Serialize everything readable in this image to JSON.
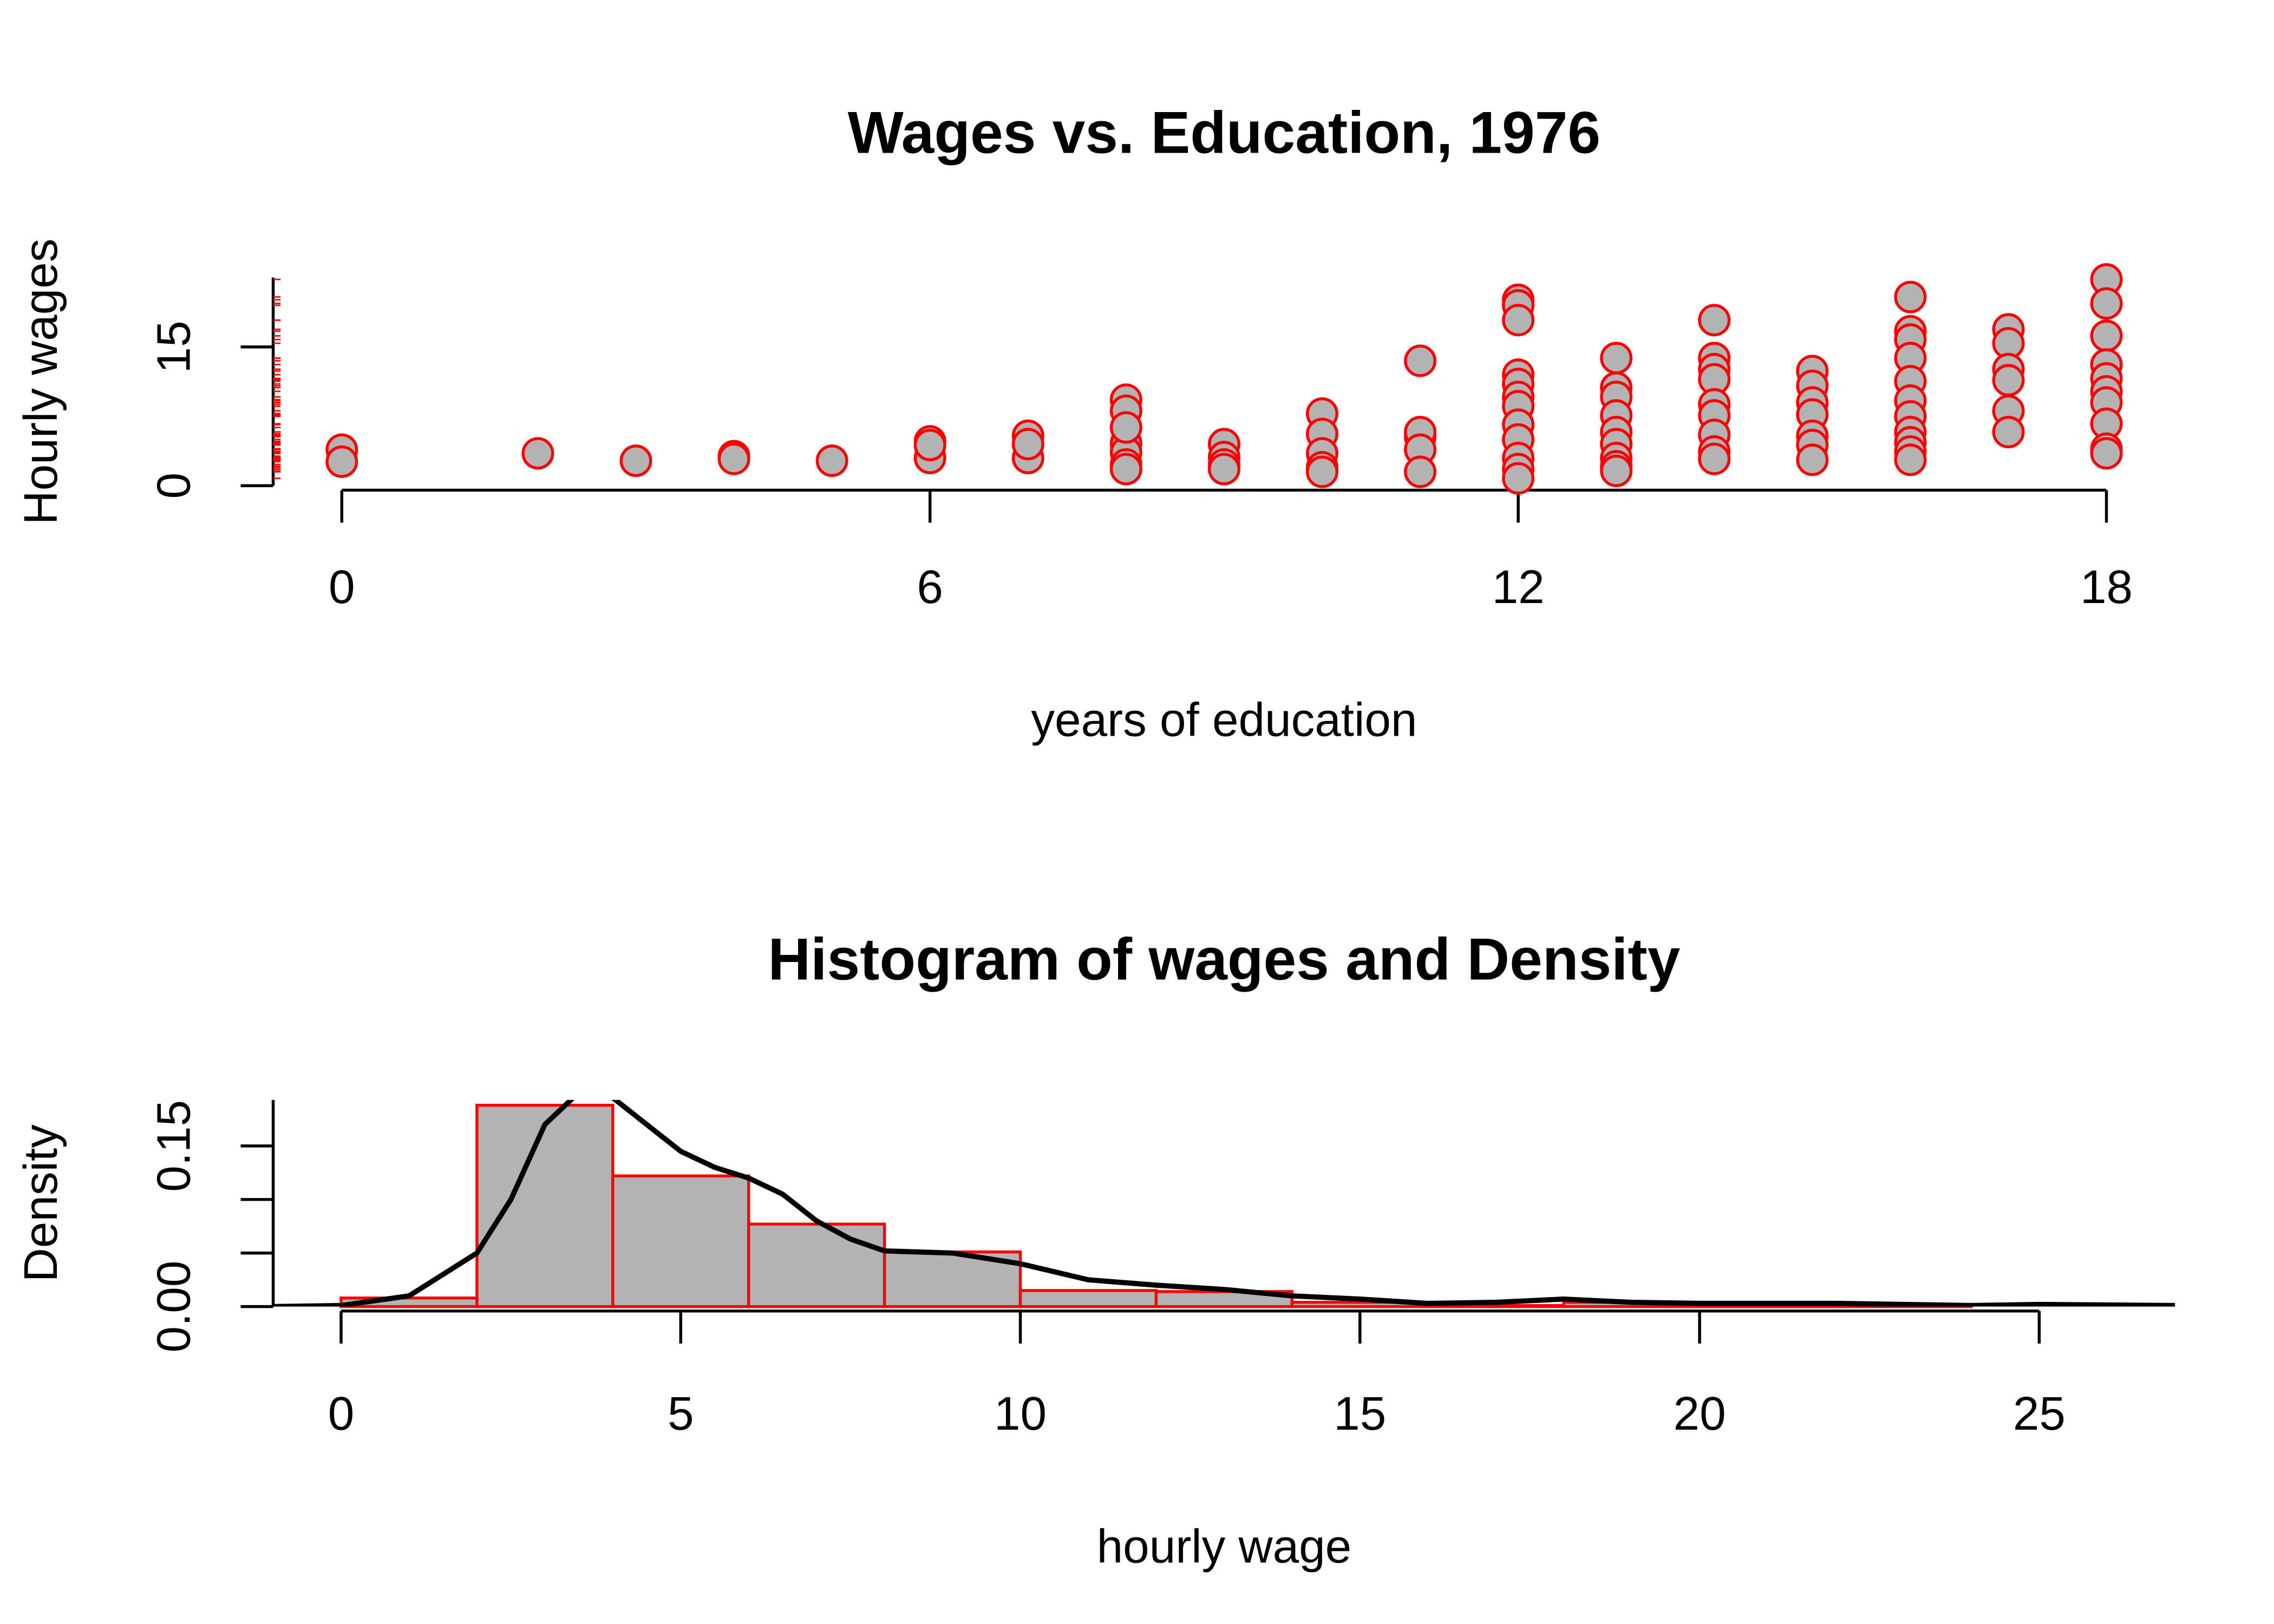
{
  "chart_data": [
    {
      "type": "scatter",
      "title": "Wages vs. Education, 1976",
      "x_label": "years of education",
      "y_label": "Hourly wages",
      "color": "#b3b3b3",
      "edgecolor": "#ff0000",
      "rug": true,
      "xlim": [
        -0.7,
        18.7
      ],
      "ylim": [
        0,
        22.5
      ],
      "xticks": [
        0,
        6,
        12,
        18
      ],
      "yticks": [
        0,
        15
      ],
      "x": [
        0,
        0,
        2,
        3,
        4,
        4,
        5,
        6,
        6,
        6,
        7,
        7,
        7,
        8,
        8,
        8,
        8,
        8,
        8,
        8,
        9,
        9,
        9,
        9,
        10,
        10,
        10,
        10,
        10,
        11,
        11,
        11,
        11,
        11,
        12,
        12,
        12,
        12,
        12,
        12,
        12,
        12,
        12,
        12,
        12,
        12,
        13,
        13,
        13,
        13,
        13,
        13,
        13,
        13,
        13,
        14,
        14,
        14,
        14,
        14,
        14,
        14,
        14,
        14,
        15,
        15,
        15,
        15,
        15,
        15,
        15,
        16,
        16,
        16,
        16,
        16,
        16,
        16,
        16,
        16,
        16,
        16,
        17,
        17,
        17,
        17,
        17,
        17,
        18,
        18,
        18,
        18,
        18,
        18,
        18,
        18,
        18,
        18
      ],
      "y": [
        3.9,
        2.6,
        3.5,
        2.7,
        3.2,
        2.9,
        2.7,
        4.8,
        3.0,
        4.4,
        5.4,
        3.0,
        4.5,
        9.3,
        8.1,
        4.6,
        3.6,
        2.3,
        1.8,
        6.3,
        4.5,
        3.1,
        2.3,
        1.8,
        7.8,
        5.6,
        3.5,
        2.0,
        1.5,
        13.5,
        5.3,
        5.8,
        3.9,
        1.5,
        20.1,
        19.5,
        17.9,
        12.0,
        11.0,
        9.6,
        8.6,
        6.6,
        5.0,
        3.0,
        1.8,
        0.8,
        13.8,
        10.6,
        9.6,
        7.6,
        5.8,
        4.5,
        3.0,
        2.1,
        1.6,
        17.9,
        13.8,
        12.6,
        11.5,
        8.8,
        7.6,
        5.5,
        3.7,
        2.9,
        12.4,
        10.8,
        9.0,
        7.7,
        5.4,
        4.4,
        2.8,
        20.4,
        16.7,
        15.8,
        13.8,
        11.3,
        9.2,
        7.5,
        5.8,
        4.7,
        3.7,
        2.8,
        16.9,
        15.4,
        12.6,
        11.4,
        8.1,
        5.8,
        22.3,
        19.7,
        16.2,
        13.1,
        11.6,
        10.2,
        9.0,
        6.7,
        4.0,
        3.5
      ]
    },
    {
      "type": "histogram",
      "title": "Histogram of wages and Density",
      "x_label": "hourly wage",
      "y_label": "Density",
      "color": "#b3b3b3",
      "edgecolor": "#ff0000",
      "xlim": [
        -1,
        27
      ],
      "ylim": [
        0,
        0.193
      ],
      "xticks": [
        0,
        5,
        10,
        15,
        20,
        25
      ],
      "yticks": [
        {
          "value": 0,
          "label": "0.00"
        },
        {
          "value": 0.15,
          "label": "0.15"
        }
      ],
      "minor_yticks": [
        0.05,
        0.1
      ],
      "bins": [
        0,
        2,
        4,
        6,
        8,
        10,
        12,
        14,
        16,
        18,
        20,
        22,
        24
      ],
      "values": [
        0.008,
        0.188,
        0.122,
        0.077,
        0.051,
        0.015,
        0.014,
        0.004,
        0.001,
        0.004,
        0.001,
        0.001
      ],
      "density": {
        "color": "#000000",
        "x": [
          -1,
          0,
          1,
          2,
          2.5,
          3,
          3.5,
          4,
          4.5,
          5,
          5.5,
          6,
          6.5,
          7,
          7.5,
          8,
          9,
          10,
          11,
          12,
          13,
          14,
          15,
          16,
          17,
          18,
          19,
          20,
          22,
          24,
          25,
          27
        ],
        "y": [
          0,
          0.001,
          0.01,
          0.05,
          0.1,
          0.17,
          0.2,
          0.195,
          0.17,
          0.145,
          0.13,
          0.12,
          0.105,
          0.08,
          0.063,
          0.052,
          0.05,
          0.04,
          0.025,
          0.02,
          0.016,
          0.01,
          0.007,
          0.003,
          0.004,
          0.007,
          0.004,
          0.003,
          0.003,
          0.001,
          0.002,
          0.001
        ]
      }
    }
  ]
}
